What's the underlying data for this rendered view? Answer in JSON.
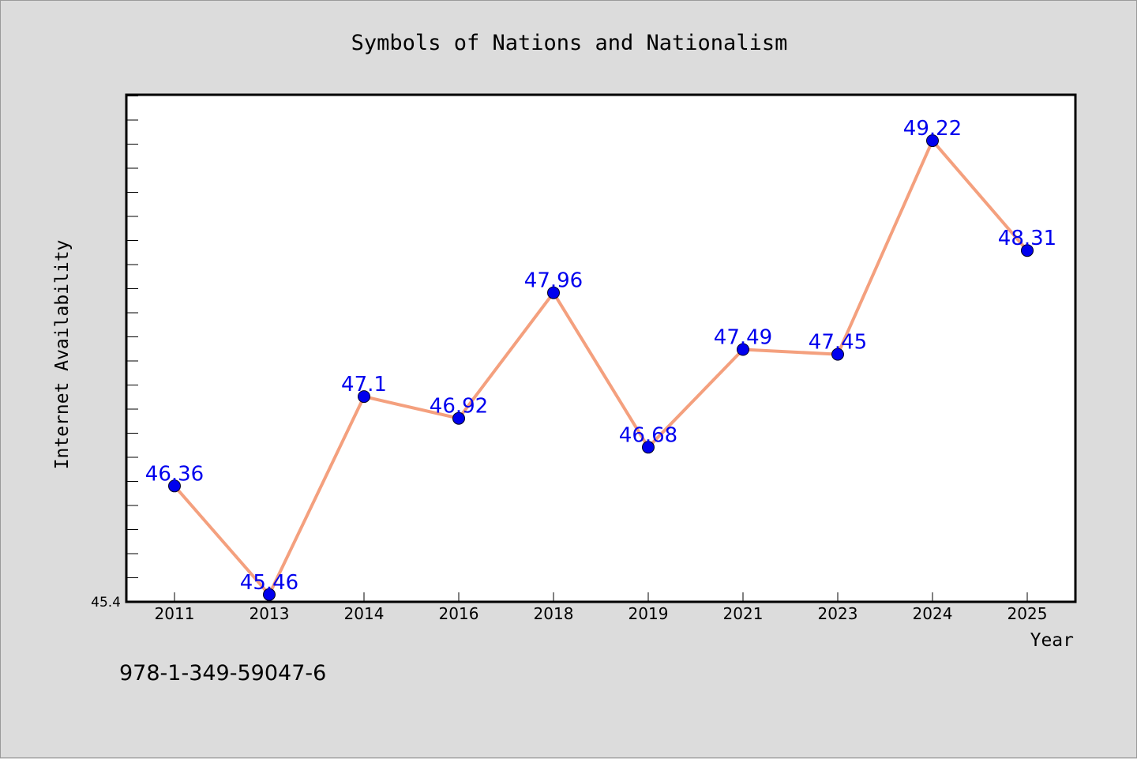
{
  "caption": "978-1-349-59047-6",
  "chart_data": {
    "type": "line",
    "title": "Symbols of Nations and Nationalism",
    "xlabel": "Year",
    "ylabel": "Internet Availability",
    "categories": [
      "2011",
      "2013",
      "2014",
      "2016",
      "2018",
      "2019",
      "2021",
      "2023",
      "2024",
      "2025"
    ],
    "series": [
      {
        "values": [
          46.36,
          45.46,
          47.1,
          46.92,
          47.96,
          46.68,
          47.49,
          47.45,
          49.22,
          48.31
        ],
        "labels": [
          "46.36",
          "45.46",
          "47.1",
          "46.92",
          "47.96",
          "46.68",
          "47.49",
          "47.45",
          "49.22",
          "48.31"
        ],
        "line_color": "#f4a07e",
        "marker_color": "#0000ee",
        "label_color": "#0000ee"
      }
    ],
    "ylim": [
      45.4,
      49.6
    ],
    "y_tick_labels": [
      "45.4"
    ],
    "grid": false,
    "legend": "none"
  }
}
